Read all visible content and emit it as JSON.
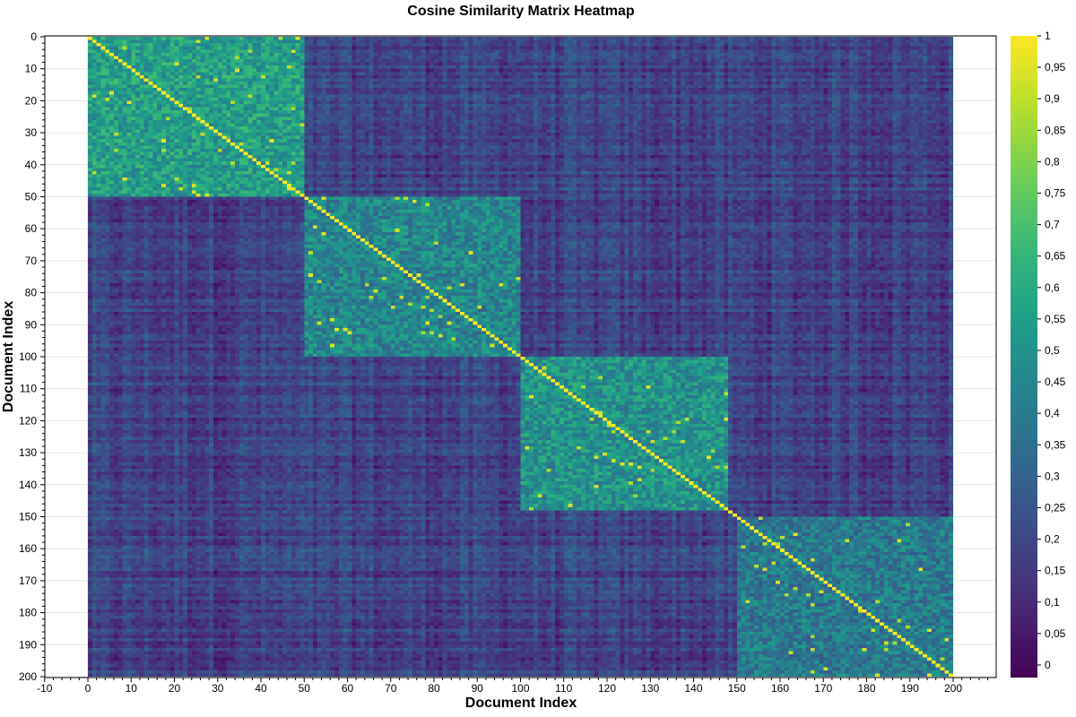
{
  "chart_data": {
    "type": "heatmap",
    "title": "Cosine Similarity Matrix Heatmap",
    "xlabel": "Document Index",
    "ylabel": "Document Index",
    "n_documents": 200,
    "xlim": [
      -10,
      210
    ],
    "ylim": [
      0,
      200
    ],
    "x_ticks": [
      "-10",
      "0",
      "10",
      "20",
      "30",
      "40",
      "50",
      "60",
      "70",
      "80",
      "90",
      "100",
      "110",
      "120",
      "130",
      "140",
      "150",
      "160",
      "170",
      "180",
      "190",
      "200"
    ],
    "y_ticks": [
      "0",
      "10",
      "20",
      "30",
      "40",
      "50",
      "60",
      "70",
      "80",
      "90",
      "100",
      "110",
      "120",
      "130",
      "140",
      "150",
      "160",
      "170",
      "180",
      "190",
      "200"
    ],
    "colorbar": {
      "colormap": "viridis",
      "range": [
        -0.02,
        1
      ],
      "tick_values": [
        0,
        0.05,
        0.1,
        0.15,
        0.2,
        0.25,
        0.3,
        0.35,
        0.4,
        0.45,
        0.5,
        0.55,
        0.6,
        0.65,
        0.7,
        0.75,
        0.8,
        0.85,
        0.9,
        0.95,
        1
      ],
      "tick_labels": [
        "0",
        "0,05",
        "0,1",
        "0,15",
        "0,2",
        "0,25",
        "0,3",
        "0,35",
        "0,4",
        "0,45",
        "0,5",
        "0,55",
        "0,6",
        "0,65",
        "0,7",
        "0,75",
        "0,8",
        "0,85",
        "0,9",
        "0,95",
        "1"
      ]
    },
    "clusters": [
      {
        "start": 0,
        "end": 50,
        "mean_similarity": 0.55
      },
      {
        "start": 50,
        "end": 100,
        "mean_similarity": 0.45
      },
      {
        "start": 100,
        "end": 148,
        "mean_similarity": 0.5
      },
      {
        "start": 150,
        "end": 200,
        "mean_similarity": 0.4
      }
    ],
    "background_similarity": 0.18,
    "diagonal_value": 1,
    "grid": true,
    "legend": "colorbar-right"
  },
  "colors": {
    "viridis_stops": [
      "#440154",
      "#482878",
      "#3e4989",
      "#31688e",
      "#26828e",
      "#1f9e89",
      "#35b779",
      "#6ece58",
      "#b5de2b",
      "#fde725"
    ],
    "grid": "#e6e6e6",
    "axis": "#000000"
  }
}
